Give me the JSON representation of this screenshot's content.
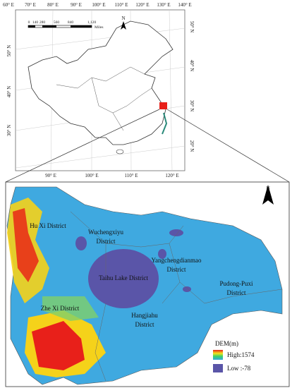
{
  "inset_map": {
    "lon_labels_top": [
      "60° E",
      "70° E",
      "80° E",
      "90° E",
      "100° E",
      "110° E",
      "120° E",
      "130° E",
      "140° E"
    ],
    "lat_labels_left": [
      "50° N",
      "40° N",
      "30° N"
    ],
    "lat_labels_right": [
      "50° N",
      "40° N",
      "30° N",
      "20° N"
    ],
    "lon_labels_bottom": [
      "90° E",
      "100° E",
      "110° E",
      "120° E"
    ],
    "scale": {
      "ticks": [
        "0",
        "140",
        "280",
        "560",
        "840",
        "1,120"
      ],
      "unit": "Miles"
    },
    "north": "N"
  },
  "main_map": {
    "north": "N",
    "districts": [
      {
        "lines": [
          "Hu Xi District"
        ]
      },
      {
        "lines": [
          "Wuchengxiyu",
          "District"
        ]
      },
      {
        "lines": [
          "Yangchengdianmao",
          "District"
        ]
      },
      {
        "lines": [
          "Taihu Lake District"
        ]
      },
      {
        "lines": [
          "Pudong-Puxi",
          "District"
        ]
      },
      {
        "lines": [
          "Zhe Xi District"
        ]
      },
      {
        "lines": [
          "Hangjiahu",
          "District"
        ]
      }
    ],
    "legend": {
      "title": "DEM(m)",
      "high": "High:1574",
      "low": "Low :-78"
    }
  }
}
